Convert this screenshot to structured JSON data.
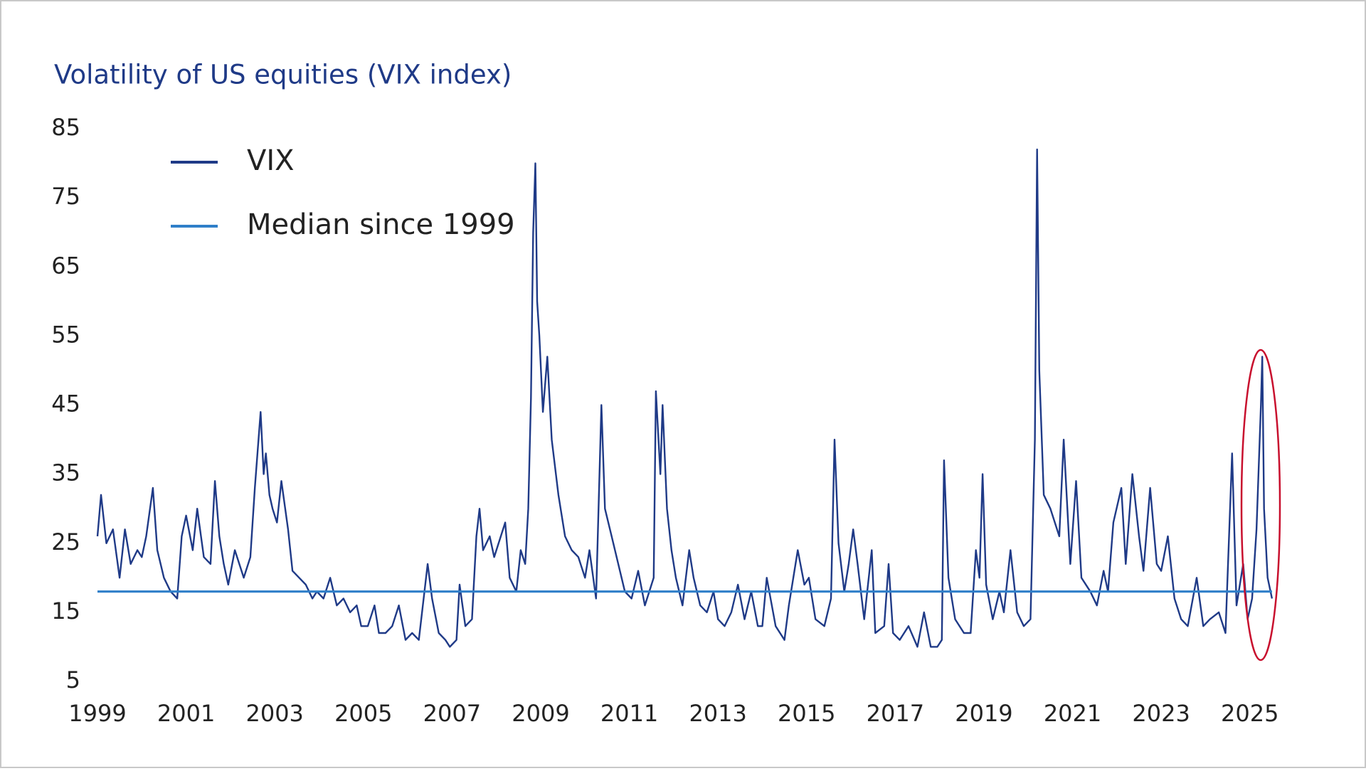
{
  "chart_data": {
    "type": "line",
    "title": "Volatility of US equities (VIX index)",
    "xlim": [
      1999,
      2025.55
    ],
    "xticks": [
      1999,
      2001,
      2003,
      2005,
      2007,
      2009,
      2011,
      2013,
      2015,
      2017,
      2019,
      2021,
      2023,
      2025
    ],
    "ylim": [
      5,
      85
    ],
    "yticks": [
      5,
      15,
      25,
      35,
      45,
      55,
      65,
      75,
      85
    ],
    "grid": false,
    "legend": "top-left",
    "series": [
      {
        "name": "VIX",
        "color": "#1f3a87",
        "x": [
          1999.0,
          1999.08,
          1999.2,
          1999.35,
          1999.5,
          1999.62,
          1999.75,
          1999.9,
          2000.0,
          2000.1,
          2000.25,
          2000.35,
          2000.5,
          2000.65,
          2000.8,
          2000.9,
          2001.0,
          2001.15,
          2001.25,
          2001.4,
          2001.55,
          2001.65,
          2001.75,
          2001.85,
          2001.95,
          2002.1,
          2002.3,
          2002.45,
          2002.55,
          2002.68,
          2002.75,
          2002.8,
          2002.88,
          2002.95,
          2003.05,
          2003.15,
          2003.3,
          2003.4,
          2003.55,
          2003.7,
          2003.85,
          2003.95,
          2004.1,
          2004.25,
          2004.4,
          2004.55,
          2004.7,
          2004.85,
          2004.95,
          2005.1,
          2005.25,
          2005.35,
          2005.5,
          2005.65,
          2005.8,
          2005.95,
          2006.1,
          2006.25,
          2006.45,
          2006.55,
          2006.7,
          2006.85,
          2006.95,
          2007.1,
          2007.17,
          2007.3,
          2007.45,
          2007.55,
          2007.62,
          2007.7,
          2007.85,
          2007.95,
          2008.05,
          2008.2,
          2008.3,
          2008.45,
          2008.55,
          2008.65,
          2008.72,
          2008.78,
          2008.83,
          2008.88,
          2008.92,
          2008.97,
          2009.05,
          2009.15,
          2009.25,
          2009.4,
          2009.55,
          2009.7,
          2009.85,
          2010.0,
          2010.1,
          2010.25,
          2010.37,
          2010.45,
          2010.6,
          2010.75,
          2010.9,
          2011.05,
          2011.2,
          2011.35,
          2011.55,
          2011.6,
          2011.7,
          2011.75,
          2011.85,
          2011.95,
          2012.05,
          2012.2,
          2012.35,
          2012.45,
          2012.6,
          2012.75,
          2012.9,
          2013.0,
          2013.15,
          2013.3,
          2013.45,
          2013.6,
          2013.75,
          2013.9,
          2014.0,
          2014.1,
          2014.3,
          2014.5,
          2014.6,
          2014.8,
          2014.95,
          2015.05,
          2015.2,
          2015.4,
          2015.55,
          2015.63,
          2015.72,
          2015.85,
          2015.95,
          2016.05,
          2016.15,
          2016.3,
          2016.47,
          2016.55,
          2016.75,
          2016.85,
          2016.95,
          2017.1,
          2017.3,
          2017.5,
          2017.65,
          2017.8,
          2017.95,
          2018.05,
          2018.1,
          2018.2,
          2018.35,
          2018.55,
          2018.7,
          2018.82,
          2018.9,
          2018.97,
          2019.05,
          2019.2,
          2019.35,
          2019.45,
          2019.6,
          2019.75,
          2019.9,
          2020.05,
          2020.15,
          2020.2,
          2020.25,
          2020.35,
          2020.5,
          2020.7,
          2020.8,
          2020.95,
          2021.08,
          2021.2,
          2021.4,
          2021.55,
          2021.7,
          2021.8,
          2021.92,
          2022.1,
          2022.2,
          2022.35,
          2022.5,
          2022.6,
          2022.75,
          2022.9,
          2023.0,
          2023.15,
          2023.3,
          2023.45,
          2023.6,
          2023.8,
          2023.95,
          2024.1,
          2024.3,
          2024.45,
          2024.6,
          2024.7,
          2024.85,
          2024.95,
          2025.05,
          2025.15,
          2025.25,
          2025.28,
          2025.32,
          2025.4,
          2025.5
        ],
        "values": [
          26,
          32,
          25,
          27,
          20,
          27,
          22,
          24,
          23,
          26,
          33,
          24,
          20,
          18,
          17,
          26,
          29,
          24,
          30,
          23,
          22,
          34,
          26,
          22,
          19,
          24,
          20,
          23,
          33,
          44,
          35,
          38,
          32,
          30,
          28,
          34,
          27,
          21,
          20,
          19,
          17,
          18,
          17,
          20,
          16,
          17,
          15,
          16,
          13,
          13,
          16,
          12,
          12,
          13,
          16,
          11,
          12,
          11,
          22,
          17,
          12,
          11,
          10,
          11,
          19,
          13,
          14,
          26,
          30,
          24,
          26,
          23,
          25,
          28,
          20,
          18,
          24,
          22,
          30,
          46,
          70,
          80,
          60,
          55,
          44,
          52,
          40,
          32,
          26,
          24,
          23,
          20,
          24,
          17,
          45,
          30,
          26,
          22,
          18,
          17,
          21,
          16,
          20,
          47,
          35,
          45,
          30,
          24,
          20,
          16,
          24,
          20,
          16,
          15,
          18,
          14,
          13,
          15,
          19,
          14,
          18,
          13,
          13,
          20,
          13,
          11,
          16,
          24,
          19,
          20,
          14,
          13,
          17,
          40,
          25,
          18,
          22,
          27,
          22,
          14,
          24,
          12,
          13,
          22,
          12,
          11,
          13,
          10,
          15,
          10,
          10,
          11,
          37,
          20,
          14,
          12,
          12,
          24,
          20,
          35,
          19,
          14,
          18,
          15,
          24,
          15,
          13,
          14,
          40,
          82,
          50,
          32,
          30,
          26,
          40,
          22,
          34,
          20,
          18,
          16,
          21,
          18,
          28,
          33,
          22,
          35,
          26,
          21,
          33,
          22,
          21,
          26,
          17,
          14,
          13,
          20,
          13,
          14,
          15,
          12,
          38,
          16,
          22,
          14,
          17,
          27,
          45,
          52,
          30,
          20,
          17
        ]
      },
      {
        "name": "Median since 1999",
        "color": "#2f7fc9",
        "x": [
          1999,
          2025.5
        ],
        "values": [
          18,
          18
        ]
      }
    ]
  }
}
